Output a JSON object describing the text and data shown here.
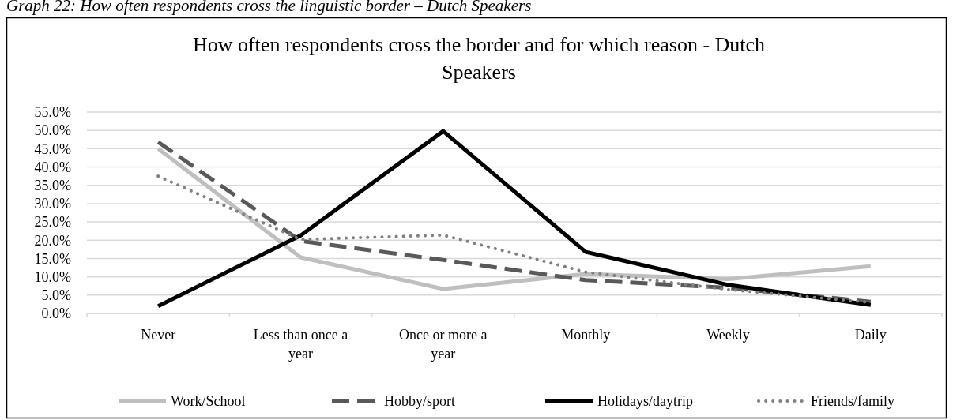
{
  "chart_data": {
    "type": "line",
    "title": "How often respondents cross the border and for which reason - Dutch Speakers",
    "annotations": [
      "Graph 22: How often respondents cross the linguistic border – Dutch Speakers"
    ],
    "categories": [
      "Never",
      "Less than once a year",
      "Once or more a year",
      "Monthly",
      "Weekly",
      "Daily"
    ],
    "series": [
      {
        "name": "Work/School",
        "color": "#bfbfbf",
        "line_style": "solid",
        "values": [
          45.0,
          15.3,
          6.7,
          10.8,
          9.4,
          12.9
        ]
      },
      {
        "name": "Hobby/sport",
        "color": "#595959",
        "line_style": "dashed",
        "values": [
          46.8,
          19.8,
          14.6,
          9.1,
          7.0,
          3.2
        ]
      },
      {
        "name": "Holidays/daytrip",
        "color": "#000000",
        "line_style": "solid",
        "values": [
          2.0,
          21.3,
          49.8,
          16.8,
          7.8,
          2.3
        ]
      },
      {
        "name": "Friends/family",
        "color": "#808080",
        "line_style": "dotted",
        "values": [
          37.5,
          20.2,
          21.4,
          11.3,
          6.5,
          3.0
        ]
      }
    ],
    "ylim": [
      0,
      55
    ],
    "yticks": [
      {
        "value": 0,
        "label": "0.0%"
      },
      {
        "value": 5,
        "label": "5.0%"
      },
      {
        "value": 10,
        "label": "10.0%"
      },
      {
        "value": 15,
        "label": "15.0%"
      },
      {
        "value": 20,
        "label": "20.0%"
      },
      {
        "value": 25,
        "label": "25.0%"
      },
      {
        "value": 30,
        "label": "30.0%"
      },
      {
        "value": 35,
        "label": "35.0%"
      },
      {
        "value": 40,
        "label": "40.0%"
      },
      {
        "value": 45,
        "label": "45.0%"
      },
      {
        "value": 50,
        "label": "50.0%"
      },
      {
        "value": 55,
        "label": "55.0%"
      }
    ],
    "grid": "y",
    "legend": "bottom",
    "marker": "none"
  }
}
